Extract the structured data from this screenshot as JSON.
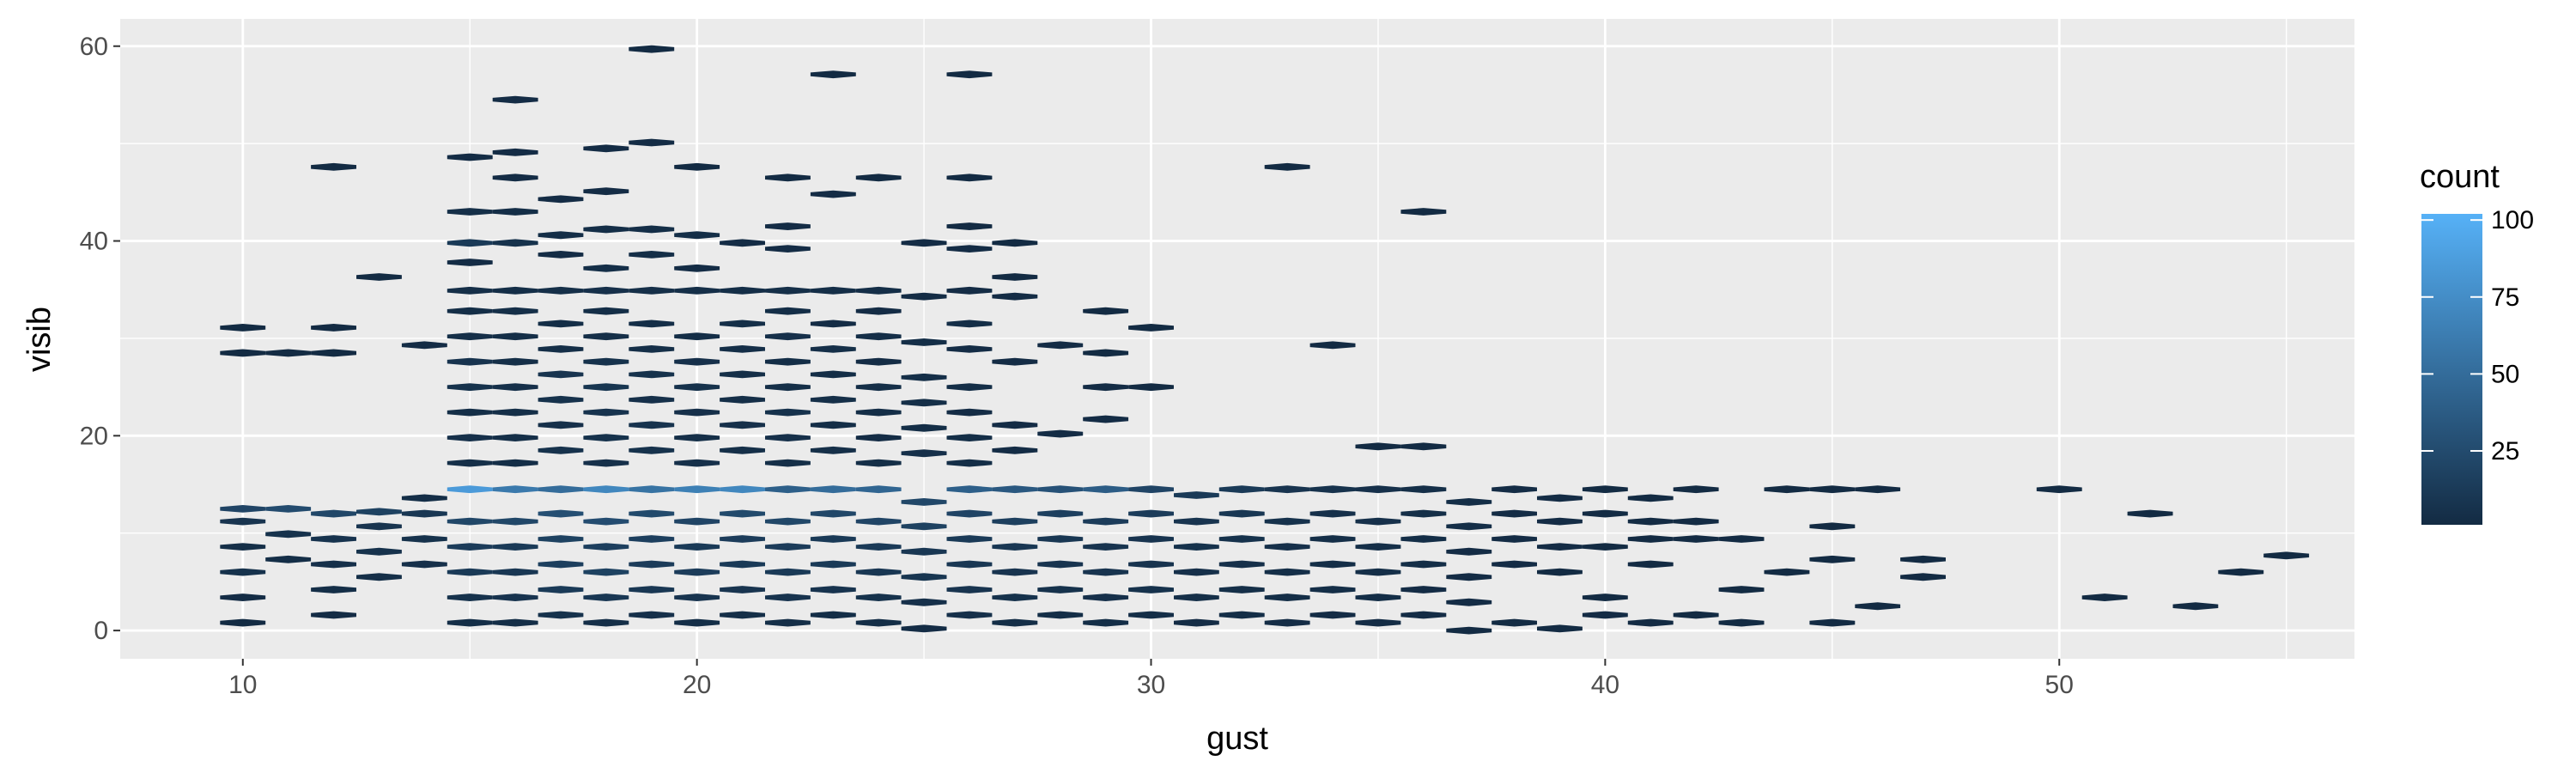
{
  "chart_data": {
    "type": "heatmap",
    "subtype": "hexbin",
    "title": "",
    "xlabel": "gust",
    "ylabel": "visib",
    "xlim": [
      7.3,
      56.5
    ],
    "ylim": [
      -2.9,
      62.8
    ],
    "x_ticks": [
      10,
      20,
      30,
      40,
      50
    ],
    "y_ticks": [
      0,
      20,
      40,
      60
    ],
    "x_tick_labels": [
      "10",
      "20",
      "30",
      "40",
      "50"
    ],
    "y_tick_labels": [
      "0",
      "20",
      "40",
      "60"
    ],
    "grid": true,
    "background": "#EBEBEB",
    "legend": {
      "title": "count",
      "position": "right",
      "breaks": [
        100,
        75,
        50,
        25
      ],
      "break_labels": [
        "100",
        "75",
        "50",
        "25"
      ],
      "range": [
        1,
        102
      ],
      "low_color": "#132B43",
      "high_color": "#56B1F7"
    },
    "hex_size": {
      "x": 0.5,
      "y": 0.39
    },
    "bins": [
      [
        10,
        0.8,
        1
      ],
      [
        10,
        3.4,
        2
      ],
      [
        10,
        6.0,
        6
      ],
      [
        10,
        8.6,
        4
      ],
      [
        10,
        11.2,
        8
      ],
      [
        10,
        12.5,
        20
      ],
      [
        10,
        31.1,
        1
      ],
      [
        10,
        28.5,
        1
      ],
      [
        11,
        7.3,
        3
      ],
      [
        11,
        9.9,
        6
      ],
      [
        11,
        12.5,
        25
      ],
      [
        11,
        28.5,
        1
      ],
      [
        12,
        1.6,
        2
      ],
      [
        12,
        4.2,
        3
      ],
      [
        12,
        6.8,
        5
      ],
      [
        12,
        9.4,
        7
      ],
      [
        12,
        12.0,
        22
      ],
      [
        12,
        31.1,
        1
      ],
      [
        12,
        28.5,
        1
      ],
      [
        12,
        47.6,
        1
      ],
      [
        13,
        5.5,
        4
      ],
      [
        13,
        8.1,
        6
      ],
      [
        13,
        10.7,
        8
      ],
      [
        13,
        12.2,
        18
      ],
      [
        13,
        36.3,
        1
      ],
      [
        14,
        6.8,
        5
      ],
      [
        14,
        9.4,
        6
      ],
      [
        14,
        12.0,
        10
      ],
      [
        14,
        13.6,
        3
      ],
      [
        14,
        29.3,
        2
      ],
      [
        15,
        0.8,
        3
      ],
      [
        15,
        3.4,
        6
      ],
      [
        15,
        6.0,
        12
      ],
      [
        15,
        8.6,
        14
      ],
      [
        15,
        11.2,
        22
      ],
      [
        15,
        14.5,
        85
      ],
      [
        15,
        17.2,
        4
      ],
      [
        15,
        19.8,
        5
      ],
      [
        15,
        22.4,
        3
      ],
      [
        15,
        25.0,
        6
      ],
      [
        15,
        27.6,
        7
      ],
      [
        15,
        30.2,
        4
      ],
      [
        15,
        32.8,
        3
      ],
      [
        15,
        34.9,
        4
      ],
      [
        15,
        37.8,
        2
      ],
      [
        15,
        39.8,
        12
      ],
      [
        15,
        43.0,
        4
      ],
      [
        15,
        48.6,
        2
      ],
      [
        16,
        0.8,
        3
      ],
      [
        16,
        3.4,
        7
      ],
      [
        16,
        6.0,
        10
      ],
      [
        16,
        8.6,
        12
      ],
      [
        16,
        11.2,
        22
      ],
      [
        16,
        14.5,
        60
      ],
      [
        16,
        17.2,
        3
      ],
      [
        16,
        19.8,
        4
      ],
      [
        16,
        22.4,
        4
      ],
      [
        16,
        25.0,
        5
      ],
      [
        16,
        27.6,
        4
      ],
      [
        16,
        30.2,
        3
      ],
      [
        16,
        32.8,
        4
      ],
      [
        16,
        34.9,
        3
      ],
      [
        16,
        39.8,
        6
      ],
      [
        16,
        43.0,
        3
      ],
      [
        16,
        46.5,
        2
      ],
      [
        16,
        49.1,
        2
      ],
      [
        16,
        54.5,
        2
      ],
      [
        17,
        1.6,
        6
      ],
      [
        17,
        4.2,
        12
      ],
      [
        17,
        6.8,
        16
      ],
      [
        17,
        9.4,
        18
      ],
      [
        17,
        12.0,
        28
      ],
      [
        17,
        14.5,
        50
      ],
      [
        17,
        18.5,
        6
      ],
      [
        17,
        21.1,
        5
      ],
      [
        17,
        23.7,
        6
      ],
      [
        17,
        26.3,
        8
      ],
      [
        17,
        28.9,
        3
      ],
      [
        17,
        31.5,
        3
      ],
      [
        17,
        34.9,
        4
      ],
      [
        17,
        38.6,
        2
      ],
      [
        17,
        40.6,
        3
      ],
      [
        17,
        44.3,
        2
      ],
      [
        18,
        0.8,
        4
      ],
      [
        18,
        3.4,
        10
      ],
      [
        18,
        6.0,
        18
      ],
      [
        18,
        8.6,
        16
      ],
      [
        18,
        11.2,
        26
      ],
      [
        18,
        14.5,
        70
      ],
      [
        18,
        17.2,
        5
      ],
      [
        18,
        19.8,
        6
      ],
      [
        18,
        22.4,
        7
      ],
      [
        18,
        25.0,
        9
      ],
      [
        18,
        27.6,
        6
      ],
      [
        18,
        30.2,
        4
      ],
      [
        18,
        32.8,
        3
      ],
      [
        18,
        34.9,
        5
      ],
      [
        18,
        37.2,
        3
      ],
      [
        18,
        41.2,
        3
      ],
      [
        18,
        45.1,
        2
      ],
      [
        18,
        49.5,
        2
      ],
      [
        19,
        1.6,
        5
      ],
      [
        19,
        4.2,
        10
      ],
      [
        19,
        6.8,
        14
      ],
      [
        19,
        9.4,
        16
      ],
      [
        19,
        12.0,
        24
      ],
      [
        19,
        14.5,
        55
      ],
      [
        19,
        18.5,
        6
      ],
      [
        19,
        21.1,
        7
      ],
      [
        19,
        23.7,
        5
      ],
      [
        19,
        26.3,
        6
      ],
      [
        19,
        28.9,
        4
      ],
      [
        19,
        31.5,
        3
      ],
      [
        19,
        34.9,
        4
      ],
      [
        19,
        38.6,
        3
      ],
      [
        19,
        41.2,
        3
      ],
      [
        19,
        50.1,
        2
      ],
      [
        19,
        59.7,
        1
      ],
      [
        20,
        0.8,
        3
      ],
      [
        20,
        3.4,
        8
      ],
      [
        20,
        6.0,
        14
      ],
      [
        20,
        8.6,
        12
      ],
      [
        20,
        11.2,
        20
      ],
      [
        20,
        14.5,
        65
      ],
      [
        20,
        17.2,
        5
      ],
      [
        20,
        19.8,
        4
      ],
      [
        20,
        22.4,
        5
      ],
      [
        20,
        25.0,
        6
      ],
      [
        20,
        27.6,
        5
      ],
      [
        20,
        30.2,
        3
      ],
      [
        20,
        34.9,
        4
      ],
      [
        20,
        37.2,
        2
      ],
      [
        20,
        40.6,
        3
      ],
      [
        20,
        47.6,
        1
      ],
      [
        21,
        1.6,
        4
      ],
      [
        21,
        4.2,
        8
      ],
      [
        21,
        6.8,
        12
      ],
      [
        21,
        9.4,
        14
      ],
      [
        21,
        12.0,
        24
      ],
      [
        21,
        14.5,
        70
      ],
      [
        21,
        18.5,
        4
      ],
      [
        21,
        21.1,
        5
      ],
      [
        21,
        23.7,
        4
      ],
      [
        21,
        26.3,
        4
      ],
      [
        21,
        28.9,
        3
      ],
      [
        21,
        31.5,
        4
      ],
      [
        21,
        34.9,
        3
      ],
      [
        21,
        39.8,
        2
      ],
      [
        22,
        0.8,
        4
      ],
      [
        22,
        3.4,
        7
      ],
      [
        22,
        6.0,
        12
      ],
      [
        22,
        8.6,
        14
      ],
      [
        22,
        11.2,
        22
      ],
      [
        22,
        14.5,
        40
      ],
      [
        22,
        17.2,
        4
      ],
      [
        22,
        19.8,
        5
      ],
      [
        22,
        22.4,
        6
      ],
      [
        22,
        25.0,
        4
      ],
      [
        22,
        27.6,
        3
      ],
      [
        22,
        30.2,
        5
      ],
      [
        22,
        32.8,
        3
      ],
      [
        22,
        34.9,
        4
      ],
      [
        22,
        39.2,
        2
      ],
      [
        22,
        41.5,
        2
      ],
      [
        22,
        46.5,
        1
      ],
      [
        23,
        1.6,
        3
      ],
      [
        23,
        4.2,
        7
      ],
      [
        23,
        6.8,
        12
      ],
      [
        23,
        9.4,
        12
      ],
      [
        23,
        12.0,
        22
      ],
      [
        23,
        14.5,
        50
      ],
      [
        23,
        18.5,
        4
      ],
      [
        23,
        21.1,
        3
      ],
      [
        23,
        23.7,
        4
      ],
      [
        23,
        26.3,
        3
      ],
      [
        23,
        28.9,
        4
      ],
      [
        23,
        31.5,
        2
      ],
      [
        23,
        34.9,
        3
      ],
      [
        23,
        44.8,
        2
      ],
      [
        23,
        57.1,
        1
      ],
      [
        24,
        0.8,
        3
      ],
      [
        24,
        3.4,
        6
      ],
      [
        24,
        6.0,
        10
      ],
      [
        24,
        8.6,
        12
      ],
      [
        24,
        11.2,
        20
      ],
      [
        24,
        14.5,
        45
      ],
      [
        24,
        17.2,
        3
      ],
      [
        24,
        19.8,
        2
      ],
      [
        24,
        22.4,
        3
      ],
      [
        24,
        25.0,
        4
      ],
      [
        24,
        27.6,
        2
      ],
      [
        24,
        30.2,
        3
      ],
      [
        24,
        32.8,
        2
      ],
      [
        24,
        34.9,
        3
      ],
      [
        24,
        46.5,
        1
      ],
      [
        25,
        0.2,
        2
      ],
      [
        25,
        2.9,
        5
      ],
      [
        25,
        5.5,
        9
      ],
      [
        25,
        8.1,
        10
      ],
      [
        25,
        10.7,
        18
      ],
      [
        25,
        13.2,
        22
      ],
      [
        25,
        18.2,
        5
      ],
      [
        25,
        20.8,
        3
      ],
      [
        25,
        23.4,
        4
      ],
      [
        25,
        26.0,
        4
      ],
      [
        25,
        29.6,
        3
      ],
      [
        25,
        34.3,
        2
      ],
      [
        25,
        39.8,
        2
      ],
      [
        26,
        1.6,
        5
      ],
      [
        26,
        4.2,
        8
      ],
      [
        26,
        6.8,
        10
      ],
      [
        26,
        9.4,
        12
      ],
      [
        26,
        12.0,
        20
      ],
      [
        26,
        14.5,
        40
      ],
      [
        26,
        17.2,
        3
      ],
      [
        26,
        19.8,
        3
      ],
      [
        26,
        22.4,
        2
      ],
      [
        26,
        25.0,
        3
      ],
      [
        26,
        28.9,
        2
      ],
      [
        26,
        31.5,
        3
      ],
      [
        26,
        34.9,
        2
      ],
      [
        26,
        39.2,
        2
      ],
      [
        26,
        41.5,
        1
      ],
      [
        26,
        46.5,
        1
      ],
      [
        26,
        57.1,
        1
      ],
      [
        27,
        0.8,
        3
      ],
      [
        27,
        3.4,
        6
      ],
      [
        27,
        6.0,
        8
      ],
      [
        27,
        8.6,
        10
      ],
      [
        27,
        11.2,
        16
      ],
      [
        27,
        14.5,
        35
      ],
      [
        27,
        18.5,
        2
      ],
      [
        27,
        21.1,
        2
      ],
      [
        27,
        27.6,
        2
      ],
      [
        27,
        34.3,
        2
      ],
      [
        27,
        36.3,
        1
      ],
      [
        27,
        39.8,
        1
      ],
      [
        28,
        1.6,
        3
      ],
      [
        28,
        4.2,
        6
      ],
      [
        28,
        6.8,
        8
      ],
      [
        28,
        9.4,
        10
      ],
      [
        28,
        12.0,
        16
      ],
      [
        28,
        14.5,
        30
      ],
      [
        28,
        20.2,
        2
      ],
      [
        28,
        29.3,
        2
      ],
      [
        29,
        0.8,
        3
      ],
      [
        29,
        3.4,
        5
      ],
      [
        29,
        6.0,
        8
      ],
      [
        29,
        8.6,
        8
      ],
      [
        29,
        11.2,
        14
      ],
      [
        29,
        14.5,
        38
      ],
      [
        29,
        21.7,
        2
      ],
      [
        29,
        25.0,
        2
      ],
      [
        29,
        28.5,
        1
      ],
      [
        29,
        32.8,
        1
      ],
      [
        30,
        1.6,
        3
      ],
      [
        30,
        4.2,
        6
      ],
      [
        30,
        6.8,
        7
      ],
      [
        30,
        9.4,
        8
      ],
      [
        30,
        12.0,
        14
      ],
      [
        30,
        14.5,
        20
      ],
      [
        30,
        25.0,
        1
      ],
      [
        30,
        31.1,
        1
      ],
      [
        31,
        0.8,
        2
      ],
      [
        31,
        3.4,
        4
      ],
      [
        31,
        6.0,
        5
      ],
      [
        31,
        8.6,
        6
      ],
      [
        31,
        11.2,
        8
      ],
      [
        31,
        13.9,
        12
      ],
      [
        32,
        1.6,
        3
      ],
      [
        32,
        4.2,
        4
      ],
      [
        32,
        6.8,
        5
      ],
      [
        32,
        9.4,
        6
      ],
      [
        32,
        12.0,
        10
      ],
      [
        32,
        14.5,
        12
      ],
      [
        33,
        0.8,
        2
      ],
      [
        33,
        3.4,
        3
      ],
      [
        33,
        6.0,
        4
      ],
      [
        33,
        8.6,
        5
      ],
      [
        33,
        11.2,
        6
      ],
      [
        33,
        14.5,
        8
      ],
      [
        33,
        47.6,
        1
      ],
      [
        34,
        1.6,
        2
      ],
      [
        34,
        4.2,
        3
      ],
      [
        34,
        6.8,
        3
      ],
      [
        34,
        9.4,
        4
      ],
      [
        34,
        12.0,
        5
      ],
      [
        34,
        14.5,
        6
      ],
      [
        34,
        29.3,
        1
      ],
      [
        35,
        0.8,
        2
      ],
      [
        35,
        3.4,
        3
      ],
      [
        35,
        6.0,
        4
      ],
      [
        35,
        8.6,
        4
      ],
      [
        35,
        11.2,
        5
      ],
      [
        35,
        14.5,
        5
      ],
      [
        35,
        18.9,
        1
      ],
      [
        36,
        1.6,
        2
      ],
      [
        36,
        4.2,
        2
      ],
      [
        36,
        6.8,
        3
      ],
      [
        36,
        9.4,
        3
      ],
      [
        36,
        12.0,
        4
      ],
      [
        36,
        14.5,
        4
      ],
      [
        36,
        18.9,
        1
      ],
      [
        36,
        43.0,
        1
      ],
      [
        37,
        0.0,
        1
      ],
      [
        37,
        2.9,
        2
      ],
      [
        37,
        5.5,
        2
      ],
      [
        37,
        8.1,
        2
      ],
      [
        37,
        10.7,
        3
      ],
      [
        37,
        13.2,
        3
      ],
      [
        38,
        6.8,
        2
      ],
      [
        38,
        9.4,
        2
      ],
      [
        38,
        12.0,
        2
      ],
      [
        38,
        14.5,
        2
      ],
      [
        38,
        0.8,
        1
      ],
      [
        39,
        0.2,
        1
      ],
      [
        39,
        6.0,
        1
      ],
      [
        39,
        8.6,
        2
      ],
      [
        39,
        11.2,
        2
      ],
      [
        39,
        13.6,
        2
      ],
      [
        40,
        1.6,
        2
      ],
      [
        40,
        3.4,
        1
      ],
      [
        40,
        12.0,
        1
      ],
      [
        40,
        14.5,
        1
      ],
      [
        40,
        8.6,
        1
      ],
      [
        41,
        0.8,
        1
      ],
      [
        41,
        6.8,
        1
      ],
      [
        41,
        9.4,
        1
      ],
      [
        41,
        11.2,
        1
      ],
      [
        41,
        13.6,
        1
      ],
      [
        42,
        1.6,
        1
      ],
      [
        42,
        9.4,
        1
      ],
      [
        42,
        11.2,
        1
      ],
      [
        42,
        14.5,
        1
      ],
      [
        43,
        0.8,
        1
      ],
      [
        43,
        4.2,
        1
      ],
      [
        43,
        9.4,
        1
      ],
      [
        44,
        6.0,
        1
      ],
      [
        44,
        14.5,
        1
      ],
      [
        45,
        0.8,
        1
      ],
      [
        45,
        7.3,
        1
      ],
      [
        45,
        10.7,
        1
      ],
      [
        45,
        14.5,
        1
      ],
      [
        46,
        2.5,
        1
      ],
      [
        46,
        14.5,
        1
      ],
      [
        47,
        5.5,
        1
      ],
      [
        47,
        7.3,
        1
      ],
      [
        50,
        14.5,
        1
      ],
      [
        51,
        3.4,
        1
      ],
      [
        52,
        12.0,
        1
      ],
      [
        53,
        2.5,
        1
      ],
      [
        54,
        6.0,
        1
      ],
      [
        55,
        7.7,
        1
      ]
    ]
  }
}
